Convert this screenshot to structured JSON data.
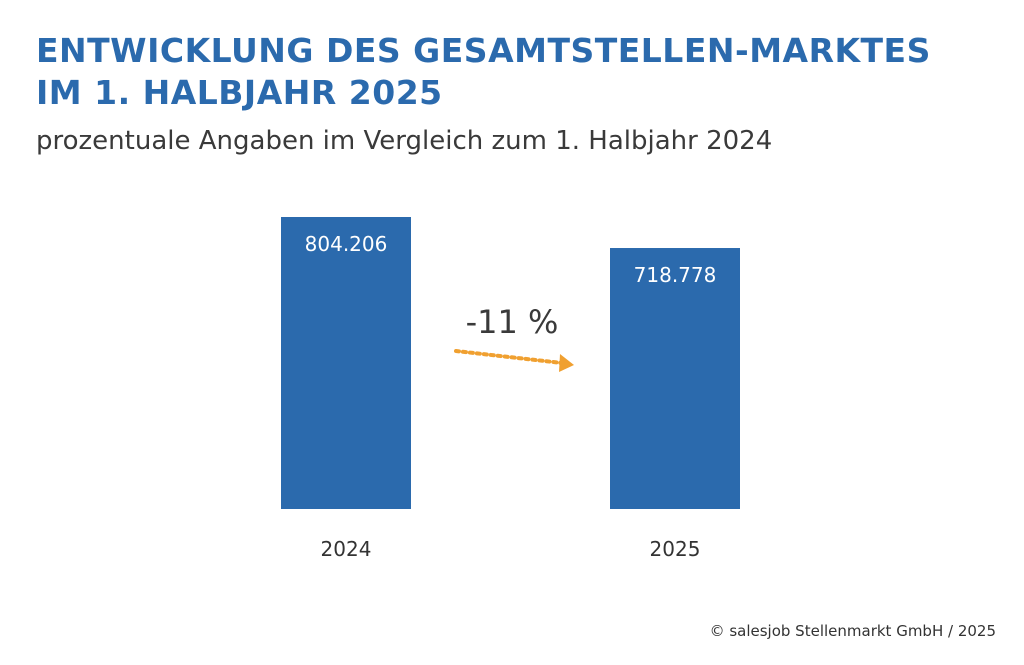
{
  "chart_data": {
    "type": "bar",
    "title": "ENTWICKLUNG DES GESAMTSTELLEN-MARKTES IM 1. HALBJAHR 2025",
    "subtitle": "prozentuale Angaben im Vergleich zum 1. Halbjahr 2024",
    "categories": [
      "2024",
      "2025"
    ],
    "values": [
      804206,
      718778
    ],
    "data_labels": [
      "804.206",
      "718.778"
    ],
    "change_label": "-11 %",
    "bar_color": "#2b6aad",
    "arrow_color": "#f0a030",
    "grid": false,
    "xlabel": "",
    "ylabel": ""
  },
  "credit": "© salesjob Stellenmarkt GmbH / 2025"
}
